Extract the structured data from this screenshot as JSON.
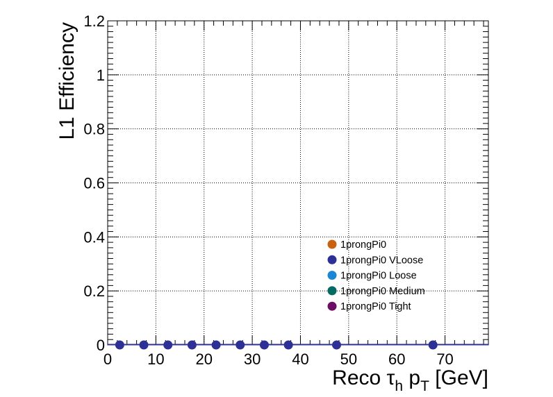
{
  "chart_data": {
    "type": "scatter",
    "xlabel_parts": {
      "main": "Reco ",
      "tau": "τ",
      "tau_sub": "h",
      "p": " p",
      "p_sub": "T",
      "unit": " [GeV]"
    },
    "ylabel": "L1 Efficiency",
    "xlim": [
      0,
      79
    ],
    "ylim": [
      0,
      1.2
    ],
    "xticks": [
      0,
      10,
      20,
      30,
      40,
      50,
      60,
      70
    ],
    "xtick_labels": [
      "0",
      "10",
      "20",
      "30",
      "40",
      "50",
      "60",
      "70"
    ],
    "yticks": [
      0,
      0.2,
      0.4,
      0.6,
      0.8,
      1.0,
      1.2
    ],
    "ytick_labels": [
      "0",
      "0.2",
      "0.4",
      "0.6",
      "0.8",
      "1",
      "1.2"
    ],
    "grid": true,
    "legend_position": "bottom-right",
    "series": [
      {
        "name": "1prongPi0",
        "color": "#c8620f",
        "x": [],
        "y": []
      },
      {
        "name": "1prongPi0 VLoose",
        "color": "#2d3196",
        "x": [
          2.5,
          7.5,
          12.5,
          17.5,
          22.5,
          27.5,
          32.5,
          37.5,
          47.5,
          67.5
        ],
        "y": [
          0,
          0,
          0,
          0,
          0,
          0,
          0,
          0,
          0,
          0
        ]
      },
      {
        "name": "1prongPi0 Loose",
        "color": "#1b86d6",
        "x": [],
        "y": []
      },
      {
        "name": "1prongPi0 Medium",
        "color": "#046b63",
        "x": [],
        "y": []
      },
      {
        "name": "1prongPi0 Tight",
        "color": "#6d0e64",
        "x": [],
        "y": []
      }
    ]
  }
}
